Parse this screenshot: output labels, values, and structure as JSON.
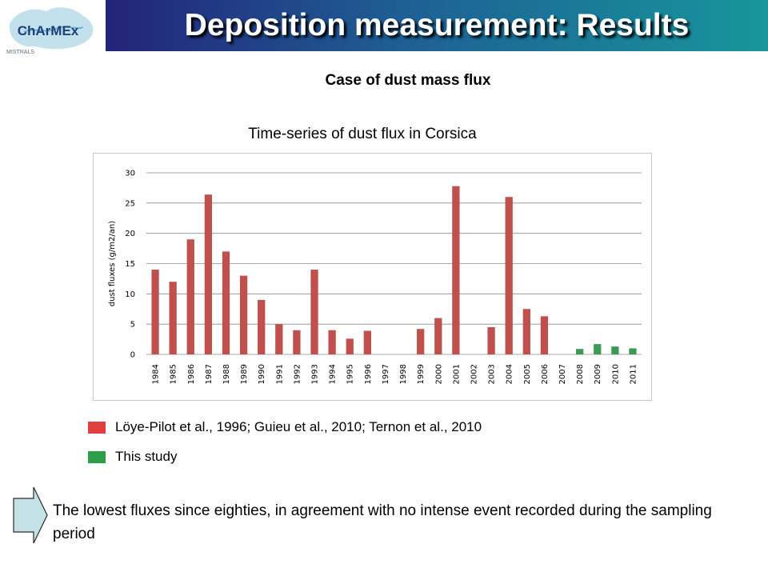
{
  "slide": {
    "title": "Deposition measurement: Results",
    "subtitle": "Case of dust mass flux",
    "logo_text": "ChArMEx",
    "logo_subtext": "MISTRALS",
    "conclusion": "The lowest fluxes since eighties, in agreement with no intense event recorded during the sampling period"
  },
  "colors": {
    "previous_studies": "#c0504d",
    "this_study": "#3a9a56",
    "legend_previous": "#e04040",
    "legend_this_study": "#2e9e48"
  },
  "chart_data": {
    "type": "bar",
    "title": "Time-series of dust flux in Corsica",
    "ylabel": "dust fluxes (g/m2/an)",
    "xlabel": "",
    "ylim": [
      0,
      30
    ],
    "yticks": [
      0,
      5,
      10,
      15,
      20,
      25,
      30
    ],
    "grid": true,
    "categories": [
      "1984",
      "1985",
      "1986",
      "1987",
      "1988",
      "1989",
      "1990",
      "1991",
      "1992",
      "1993",
      "1994",
      "1995",
      "1996",
      "1997",
      "1998",
      "1999",
      "2000",
      "2001",
      "2002",
      "2003",
      "2004",
      "2005",
      "2006",
      "2007",
      "2008",
      "2009",
      "2010",
      "2011"
    ],
    "series": [
      {
        "name": "Löye-Pilot et al., 1996; Guieu et al., 2010; Ternon et al., 2010",
        "color": "#c0504d",
        "values": [
          14,
          12,
          19,
          26.4,
          17,
          13,
          9,
          5,
          4,
          14,
          4,
          2.6,
          3.9,
          null,
          null,
          4.2,
          6,
          27.8,
          null,
          4.5,
          26,
          7.5,
          6.3,
          null,
          null,
          null,
          null,
          null
        ]
      },
      {
        "name": "This study",
        "color": "#3a9a56",
        "values": [
          null,
          null,
          null,
          null,
          null,
          null,
          null,
          null,
          null,
          null,
          null,
          null,
          null,
          null,
          null,
          null,
          null,
          null,
          null,
          null,
          null,
          null,
          null,
          null,
          0.9,
          1.7,
          1.3,
          1.0
        ]
      }
    ]
  },
  "legend": [
    {
      "label": "Löye-Pilot et al., 1996; Guieu et al., 2010; Ternon et al., 2010",
      "color": "#e04040"
    },
    {
      "label": "This study",
      "color": "#2e9e48"
    }
  ]
}
